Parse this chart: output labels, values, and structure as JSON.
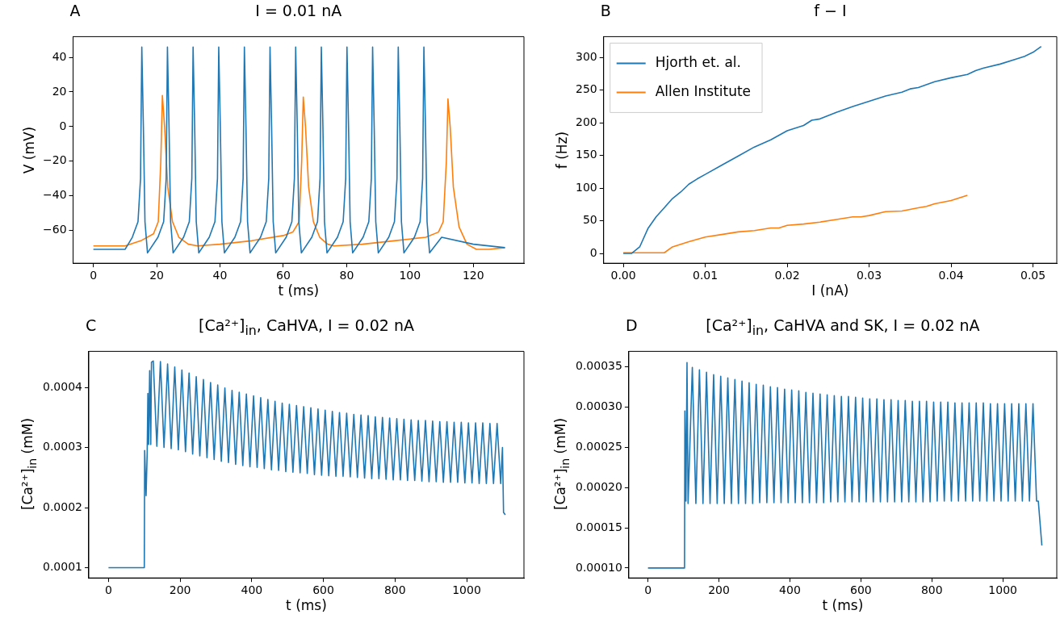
{
  "chart_data": [
    {
      "type": "line",
      "title": "I = 0.01 nA",
      "annotations": [
        "A"
      ],
      "xlabel": "t (ms)",
      "ylabel": "V (mV)",
      "xlim": [
        -6.4,
        136
      ],
      "ylim": [
        -79,
        52
      ],
      "xticks": [
        0,
        20,
        40,
        60,
        80,
        100,
        120
      ],
      "yticks": [
        {
          "value": -60,
          "label": "−60"
        },
        {
          "value": -40,
          "label": "−40"
        },
        {
          "value": -20,
          "label": "−20"
        },
        0,
        20,
        40
      ],
      "series": [
        {
          "color": "#1f77b4",
          "x": [
            0,
            10,
            12.3,
            14.1,
            14.9,
            15.3,
            15.8,
            16.3,
            17.1,
            20.4,
            22.2,
            23.0,
            23.4,
            23.9,
            24.4,
            25.2,
            28.5,
            30.3,
            31.1,
            31.5,
            32.0,
            32.5,
            33.3,
            36.6,
            38.4,
            39.2,
            39.6,
            40.1,
            40.6,
            41.4,
            44.7,
            46.5,
            47.3,
            47.7,
            48.2,
            48.7,
            49.5,
            52.8,
            54.6,
            55.4,
            55.8,
            56.3,
            56.8,
            57.6,
            60.9,
            62.7,
            63.5,
            63.9,
            64.4,
            64.9,
            65.7,
            69.0,
            70.8,
            71.6,
            72.0,
            72.5,
            73.0,
            73.8,
            77.1,
            78.9,
            79.7,
            80.1,
            80.6,
            81.1,
            81.9,
            85.2,
            87.0,
            87.8,
            88.2,
            88.7,
            89.2,
            90.0,
            93.3,
            95.1,
            95.9,
            96.3,
            96.8,
            97.3,
            98.1,
            101.4,
            103.2,
            104.0,
            104.4,
            104.9,
            105.4,
            106.2,
            110,
            120,
            130
          ],
          "values": [
            -71,
            -71,
            -64,
            -55,
            -30,
            46,
            0,
            -55,
            -73,
            -64,
            -55,
            -30,
            46,
            0,
            -55,
            -73,
            -64,
            -55,
            -30,
            46,
            0,
            -55,
            -73,
            -64,
            -55,
            -30,
            46,
            0,
            -55,
            -73,
            -64,
            -55,
            -30,
            46,
            0,
            -55,
            -73,
            -64,
            -55,
            -30,
            46,
            0,
            -55,
            -73,
            -64,
            -55,
            -30,
            46,
            0,
            -55,
            -73,
            -64,
            -55,
            -30,
            46,
            0,
            -55,
            -73,
            -64,
            -55,
            -30,
            46,
            0,
            -55,
            -73,
            -64,
            -55,
            -30,
            46,
            0,
            -55,
            -73,
            -64,
            -55,
            -30,
            46,
            0,
            -55,
            -73,
            -64,
            -55,
            -30,
            46,
            0,
            -55,
            -73,
            -64,
            -68,
            -70
          ]
        },
        {
          "color": "#ff7f0e",
          "x": [
            0,
            10,
            15,
            19,
            20.5,
            21.3,
            21.8,
            22.5,
            23.5,
            25,
            27,
            30,
            33,
            40,
            50,
            60,
            63,
            65,
            65.8,
            66.3,
            67,
            68,
            69.5,
            71.5,
            74,
            76,
            85,
            95,
            105,
            109,
            110.5,
            111.5,
            112,
            112.7,
            113.7,
            115.5,
            118,
            121,
            125,
            130
          ],
          "values": [
            -69,
            -69,
            -66,
            -62,
            -55,
            -20,
            18,
            0,
            -35,
            -55,
            -64,
            -68,
            -69,
            -68,
            -66,
            -63,
            -61,
            -55,
            -20,
            17,
            0,
            -35,
            -55,
            -64,
            -68,
            -69,
            -68,
            -66,
            -64,
            -61,
            -55,
            -20,
            16,
            0,
            -35,
            -58,
            -68,
            -71,
            -71,
            -70
          ]
        }
      ]
    },
    {
      "type": "line",
      "title": "f − I",
      "annotations": [
        "B"
      ],
      "xlabel": "I (nA)",
      "ylabel": "f (Hz)",
      "legend": "top left",
      "xlim": [
        -0.0024,
        0.0529
      ],
      "ylim": [
        -15,
        332
      ],
      "xticks": [
        {
          "value": 0,
          "label": "0.00"
        },
        {
          "value": 0.01,
          "label": "0.01"
        },
        {
          "value": 0.02,
          "label": "0.02"
        },
        {
          "value": 0.03,
          "label": "0.03"
        },
        {
          "value": 0.04,
          "label": "0.04"
        },
        {
          "value": 0.05,
          "label": "0.05"
        }
      ],
      "yticks": [
        0,
        50,
        100,
        150,
        200,
        250,
        300
      ],
      "series": [
        {
          "name": "Hjorth et. al.",
          "color": "#1f77b4",
          "x": [
            0,
            0.001,
            0.002,
            0.003,
            0.004,
            0.005,
            0.006,
            0.007,
            0.008,
            0.009,
            0.01,
            0.012,
            0.014,
            0.016,
            0.018,
            0.02,
            0.022,
            0.023,
            0.024,
            0.026,
            0.028,
            0.03,
            0.032,
            0.034,
            0.035,
            0.036,
            0.038,
            0.04,
            0.042,
            0.043,
            0.044,
            0.046,
            0.048,
            0.049,
            0.05,
            0.051
          ],
          "values": [
            0,
            0,
            10,
            38,
            56,
            70,
            84,
            94,
            106,
            114,
            121,
            135,
            149,
            163,
            174,
            188,
            196,
            204,
            206,
            216,
            225,
            233,
            241,
            247,
            252,
            254,
            263,
            269,
            274,
            280,
            284,
            290,
            298,
            302,
            308,
            317
          ]
        },
        {
          "name": "Allen Institute",
          "color": "#ff7f0e",
          "x": [
            0,
            0.005,
            0.006,
            0.008,
            0.01,
            0.012,
            0.014,
            0.016,
            0.018,
            0.019,
            0.02,
            0.022,
            0.024,
            0.026,
            0.028,
            0.029,
            0.03,
            0.032,
            0.034,
            0.036,
            0.037,
            0.038,
            0.04,
            0.041,
            0.042
          ],
          "values": [
            1,
            1,
            10,
            18,
            25,
            29,
            33,
            35,
            39,
            39,
            43,
            45,
            48,
            52,
            56,
            56,
            58,
            64,
            65,
            70,
            72,
            76,
            81,
            85,
            89
          ]
        }
      ]
    },
    {
      "type": "line",
      "title": "[Ca²⁺]$_{in}$, CaHVA, I = 0.02 nA",
      "annotations": [
        "C"
      ],
      "xlabel": "t (ms)",
      "ylabel": "[Ca²⁺]$_{in}$ (mM)",
      "xlim": [
        -55,
        1160
      ],
      "ylim": [
        8.3e-05,
        0.00046
      ],
      "xticks": [
        0,
        200,
        400,
        600,
        800,
        1000
      ],
      "yticks": [
        0.0001,
        0.0002,
        0.0003,
        0.0004
      ],
      "series": [
        {
          "color": "#1f77b4",
          "x": [
            0,
            100,
            101,
            105,
            108,
            110,
            112,
            115,
            118,
            120,
            125,
            135,
            145,
            155,
            165,
            175,
            185,
            195,
            205,
            215,
            225,
            235,
            245,
            255,
            265,
            275,
            285,
            295,
            305,
            315,
            325,
            335,
            345,
            355,
            365,
            375,
            385,
            395,
            405,
            415,
            425,
            435,
            445,
            455,
            465,
            475,
            485,
            495,
            505,
            515,
            525,
            535,
            545,
            555,
            565,
            575,
            585,
            595,
            605,
            615,
            625,
            635,
            645,
            655,
            665,
            675,
            685,
            695,
            705,
            715,
            725,
            735,
            745,
            755,
            765,
            775,
            785,
            795,
            805,
            815,
            825,
            835,
            845,
            855,
            865,
            875,
            885,
            895,
            905,
            915,
            925,
            935,
            945,
            955,
            965,
            975,
            985,
            995,
            1005,
            1015,
            1025,
            1035,
            1045,
            1055,
            1065,
            1075,
            1085,
            1095,
            1100,
            1103,
            1108
          ],
          "values": [
            0.0001,
            0.0001,
            0.000295,
            0.00022,
            0.00029,
            0.00039,
            0.000305,
            0.000428,
            0.000305,
            0.000442,
            0.000444,
            0.000302,
            0.000443,
            0.0003,
            0.000439,
            0.000298,
            0.000434,
            0.000296,
            0.000429,
            0.000293,
            0.000424,
            0.000289,
            0.000418,
            0.000286,
            0.000413,
            0.000283,
            0.000408,
            0.00028,
            0.000404,
            0.000277,
            0.000399,
            0.000275,
            0.000395,
            0.000272,
            0.000392,
            0.00027,
            0.000389,
            0.000268,
            0.000386,
            0.000267,
            0.000383,
            0.000265,
            0.00038,
            0.000263,
            0.000377,
            0.000262,
            0.000374,
            0.00026,
            0.000372,
            0.000259,
            0.00037,
            0.000258,
            0.000368,
            0.000257,
            0.000366,
            0.000255,
            0.000364,
            0.000254,
            0.000362,
            0.000253,
            0.00036,
            0.000252,
            0.000358,
            0.000252,
            0.000357,
            0.000251,
            0.000355,
            0.00025,
            0.000354,
            0.000249,
            0.000353,
            0.000248,
            0.000351,
            0.000248,
            0.00035,
            0.000247,
            0.000349,
            0.000246,
            0.000348,
            0.000246,
            0.000347,
            0.000245,
            0.000346,
            0.000245,
            0.000345,
            0.000244,
            0.000345,
            0.000243,
            0.000344,
            0.000243,
            0.000343,
            0.000242,
            0.000343,
            0.000242,
            0.000342,
            0.000242,
            0.000342,
            0.000241,
            0.000341,
            0.000241,
            0.000341,
            0.00024,
            0.000341,
            0.00024,
            0.00034,
            0.00024,
            0.00034,
            0.00024,
            0.0003,
            0.000192,
            0.000188
          ]
        }
      ]
    },
    {
      "type": "line",
      "title": "[Ca²⁺]$_{in}$, CaHVA and SK, I = 0.02 nA",
      "annotations": [
        "D"
      ],
      "xlabel": "t (ms)",
      "ylabel": "[Ca²⁺]$_{in}$ (mM)",
      "xlim": [
        -54,
        1152
      ],
      "ylim": [
        8.77e-05,
        0.000369
      ],
      "xticks": [
        0,
        200,
        400,
        600,
        800,
        1000
      ],
      "yticks": [
        {
          "value": 0.0001,
          "label": "0.00010"
        },
        {
          "value": 0.00015,
          "label": "0.00015"
        },
        {
          "value": 0.0002,
          "label": "0.00020"
        },
        {
          "value": 0.00025,
          "label": "0.00025"
        },
        {
          "value": 0.0003,
          "label": "0.00030"
        },
        {
          "value": 0.00035,
          "label": "0.00035"
        }
      ],
      "series": [
        {
          "color": "#1f77b4",
          "x": [
            0,
            103,
            104,
            107,
            110,
            113,
            125,
            135,
            145,
            155,
            165,
            175,
            185,
            195,
            205,
            215,
            225,
            235,
            245,
            255,
            265,
            275,
            285,
            295,
            305,
            315,
            325,
            335,
            345,
            355,
            365,
            375,
            385,
            395,
            405,
            415,
            425,
            435,
            445,
            455,
            465,
            475,
            485,
            495,
            505,
            515,
            525,
            535,
            545,
            555,
            565,
            575,
            585,
            595,
            605,
            615,
            625,
            635,
            645,
            655,
            665,
            675,
            685,
            695,
            705,
            715,
            725,
            735,
            745,
            755,
            765,
            775,
            785,
            795,
            805,
            815,
            825,
            835,
            845,
            855,
            865,
            875,
            885,
            895,
            905,
            915,
            925,
            935,
            945,
            955,
            965,
            975,
            985,
            995,
            1005,
            1015,
            1025,
            1035,
            1045,
            1055,
            1065,
            1075,
            1085,
            1095,
            1100,
            1110
          ],
          "values": [
            0.0001,
            0.0001,
            0.000295,
            0.000183,
            0.000355,
            0.00018,
            0.000349,
            0.00018,
            0.000346,
            0.00018,
            0.000343,
            0.00018,
            0.00034,
            0.00018,
            0.000338,
            0.00018,
            0.000336,
            0.00018,
            0.000334,
            0.00018,
            0.000332,
            0.00018,
            0.00033,
            0.00018,
            0.000328,
            0.000181,
            0.000327,
            0.000181,
            0.000325,
            0.000181,
            0.000324,
            0.000181,
            0.000322,
            0.000181,
            0.000321,
            0.000181,
            0.00032,
            0.000181,
            0.000318,
            0.000181,
            0.000317,
            0.000181,
            0.000316,
            0.000181,
            0.000315,
            0.000182,
            0.000314,
            0.000182,
            0.000313,
            0.000182,
            0.000313,
            0.000182,
            0.000312,
            0.000182,
            0.000311,
            0.000182,
            0.00031,
            0.000182,
            0.00031,
            0.000182,
            0.000309,
            0.000182,
            0.000309,
            0.000182,
            0.000308,
            0.000182,
            0.000308,
            0.000182,
            0.000307,
            0.000182,
            0.000307,
            0.000182,
            0.000307,
            0.000182,
            0.000306,
            0.000183,
            0.000306,
            0.000183,
            0.000306,
            0.000183,
            0.000305,
            0.000183,
            0.000305,
            0.000183,
            0.000305,
            0.000183,
            0.000305,
            0.000183,
            0.000305,
            0.000183,
            0.000304,
            0.000183,
            0.000304,
            0.000183,
            0.000304,
            0.000183,
            0.000304,
            0.000183,
            0.000304,
            0.000183,
            0.000304,
            0.000183,
            0.000304,
            0.000183,
            0.000183,
            0.000128
          ]
        }
      ]
    }
  ]
}
